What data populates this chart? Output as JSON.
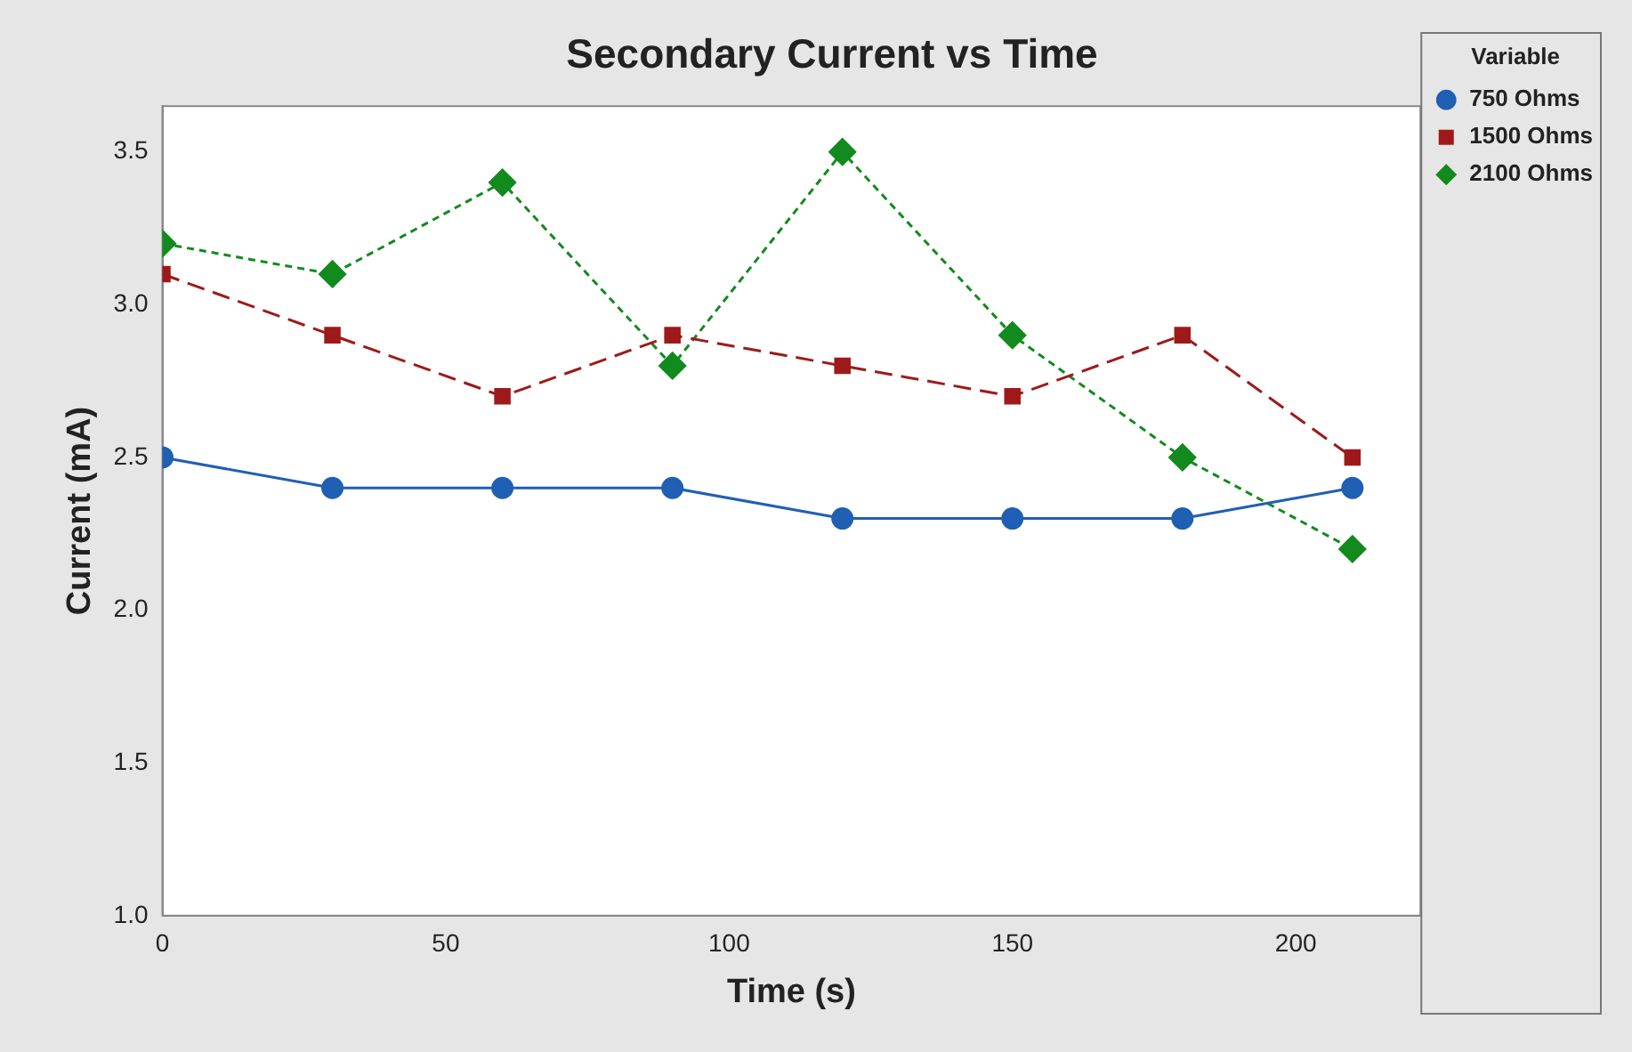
{
  "chart_data": {
    "type": "line",
    "title": "Secondary Current vs Time",
    "xlabel": "Time (s)",
    "ylabel": "Current (mA)",
    "legend_title": "Variable",
    "x": [
      0,
      30,
      60,
      90,
      120,
      150,
      180,
      210
    ],
    "series": [
      {
        "name": "750 Ohms",
        "color": "#1f5fb4",
        "marker": "circle",
        "line_style": "solid",
        "values": [
          2.5,
          2.4,
          2.4,
          2.4,
          2.3,
          2.3,
          2.3,
          2.4
        ]
      },
      {
        "name": "1500 Ohms",
        "color": "#9e1a1a",
        "marker": "square",
        "line_style": "dashed",
        "values": [
          3.1,
          2.9,
          2.7,
          2.9,
          2.8,
          2.7,
          2.9,
          2.5
        ]
      },
      {
        "name": "2100 Ohms",
        "color": "#128a1e",
        "marker": "diamond",
        "line_style": "dotted",
        "values": [
          3.2,
          3.1,
          3.4,
          2.8,
          3.5,
          2.9,
          2.5,
          2.2
        ]
      }
    ],
    "xlim": [
      0,
      222
    ],
    "xticks": [
      0,
      50,
      100,
      150,
      200
    ],
    "ylim": [
      1.0,
      3.65
    ],
    "yticks": [
      {
        "value": 1.0,
        "label": "1.0"
      },
      {
        "value": 1.5,
        "label": "1.5"
      },
      {
        "value": 2.0,
        "label": "2.0"
      },
      {
        "value": 2.5,
        "label": "2.5"
      },
      {
        "value": 3.0,
        "label": "3.0"
      },
      {
        "value": 3.5,
        "label": "3.5"
      }
    ],
    "grid": false,
    "legend": "top right"
  }
}
